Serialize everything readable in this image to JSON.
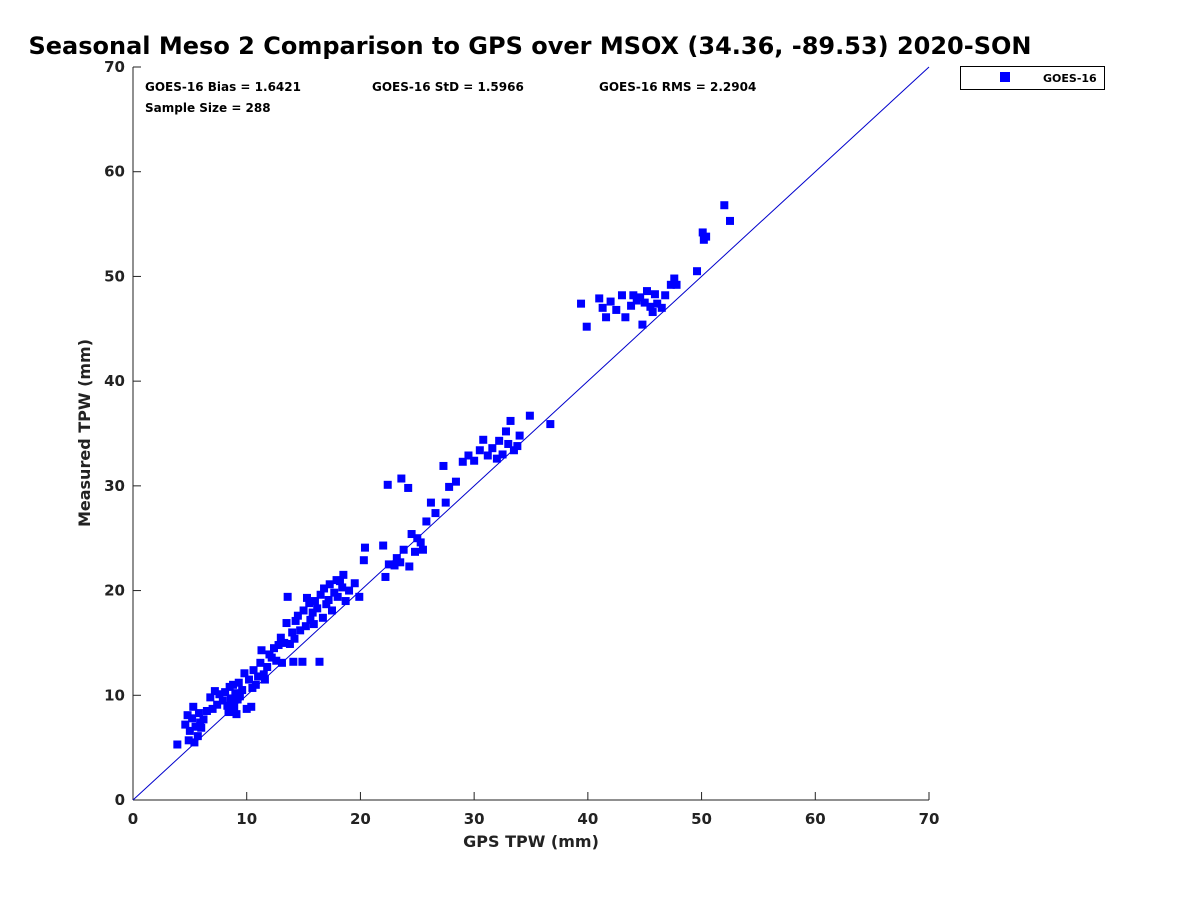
{
  "chart_data": {
    "type": "scatter",
    "title": "Seasonal Meso 2 Comparison to GPS over MSOX (34.36, -89.53) 2020-SON",
    "xlabel": "GPS TPW (mm)",
    "ylabel": "Measured TPW (mm)",
    "xlim": [
      0,
      70
    ],
    "ylim": [
      0,
      70
    ],
    "x_ticks": [
      0,
      10,
      20,
      30,
      40,
      50,
      60,
      70
    ],
    "y_ticks": [
      0,
      10,
      20,
      30,
      40,
      50,
      60,
      70
    ],
    "grid": false,
    "legend_position": "top-right outside",
    "reference_line": {
      "type": "one-to-one",
      "color": "#0000cc"
    },
    "stats": {
      "bias": "GOES-16 Bias = 1.6421",
      "std": "GOES-16 StD = 1.5966",
      "rms": "GOES-16 RMS = 2.2904",
      "sample": "Sample Size = 288"
    },
    "series": [
      {
        "name": "GOES-16",
        "color": "#0000ff",
        "marker": "square",
        "points": [
          [
            3.9,
            5.3
          ],
          [
            4.6,
            7.2
          ],
          [
            4.8,
            8.1
          ],
          [
            4.9,
            5.7
          ],
          [
            5.0,
            6.6
          ],
          [
            5.2,
            7.8
          ],
          [
            5.3,
            8.9
          ],
          [
            5.4,
            5.5
          ],
          [
            5.5,
            7.0
          ],
          [
            5.7,
            6.1
          ],
          [
            5.8,
            8.3
          ],
          [
            5.9,
            7.4
          ],
          [
            6.0,
            6.9
          ],
          [
            6.2,
            7.7
          ],
          [
            6.5,
            8.5
          ],
          [
            6.8,
            9.8
          ],
          [
            7.0,
            8.7
          ],
          [
            7.2,
            10.4
          ],
          [
            7.4,
            9.1
          ],
          [
            7.6,
            10.1
          ],
          [
            7.9,
            9.5
          ],
          [
            8.1,
            10.3
          ],
          [
            8.3,
            9.0
          ],
          [
            8.4,
            8.4
          ],
          [
            8.5,
            10.8
          ],
          [
            8.6,
            9.7
          ],
          [
            8.7,
            9.3
          ],
          [
            8.8,
            11.0
          ],
          [
            8.9,
            8.9
          ],
          [
            9.0,
            10.2
          ],
          [
            9.1,
            8.2
          ],
          [
            9.2,
            9.6
          ],
          [
            9.3,
            11.2
          ],
          [
            9.4,
            9.9
          ],
          [
            9.6,
            10.5
          ],
          [
            9.8,
            12.1
          ],
          [
            10.0,
            8.7
          ],
          [
            10.2,
            11.5
          ],
          [
            10.4,
            8.9
          ],
          [
            10.5,
            10.7
          ],
          [
            10.6,
            12.4
          ],
          [
            10.8,
            11.0
          ],
          [
            11.0,
            11.8
          ],
          [
            11.2,
            13.1
          ],
          [
            11.3,
            14.3
          ],
          [
            11.5,
            12.0
          ],
          [
            11.6,
            11.5
          ],
          [
            11.8,
            12.7
          ],
          [
            12.0,
            13.9
          ],
          [
            12.2,
            13.6
          ],
          [
            12.4,
            14.5
          ],
          [
            12.6,
            13.3
          ],
          [
            12.8,
            14.8
          ],
          [
            13.0,
            15.5
          ],
          [
            13.1,
            13.1
          ],
          [
            13.3,
            15.0
          ],
          [
            13.5,
            16.9
          ],
          [
            13.6,
            19.4
          ],
          [
            13.8,
            14.9
          ],
          [
            14.0,
            16.0
          ],
          [
            14.1,
            13.2
          ],
          [
            14.2,
            15.4
          ],
          [
            14.3,
            17.1
          ],
          [
            14.5,
            17.6
          ],
          [
            14.7,
            16.2
          ],
          [
            14.9,
            13.2
          ],
          [
            15.0,
            18.1
          ],
          [
            15.2,
            16.6
          ],
          [
            15.3,
            19.3
          ],
          [
            15.5,
            18.8
          ],
          [
            15.6,
            17.2
          ],
          [
            15.8,
            17.9
          ],
          [
            15.9,
            16.8
          ],
          [
            16.0,
            19.0
          ],
          [
            16.2,
            18.3
          ],
          [
            16.4,
            13.2
          ],
          [
            16.5,
            19.6
          ],
          [
            16.7,
            17.4
          ],
          [
            16.8,
            20.2
          ],
          [
            17.0,
            18.7
          ],
          [
            17.2,
            19.1
          ],
          [
            17.3,
            20.6
          ],
          [
            17.5,
            18.1
          ],
          [
            17.7,
            19.8
          ],
          [
            17.9,
            21.0
          ],
          [
            18.0,
            19.4
          ],
          [
            18.2,
            20.9
          ],
          [
            18.4,
            20.3
          ],
          [
            18.5,
            21.5
          ],
          [
            18.7,
            19.0
          ],
          [
            19.0,
            20.0
          ],
          [
            19.5,
            20.7
          ],
          [
            19.9,
            19.4
          ],
          [
            20.3,
            22.9
          ],
          [
            20.4,
            24.1
          ],
          [
            22.0,
            24.3
          ],
          [
            22.2,
            21.3
          ],
          [
            22.5,
            22.5
          ],
          [
            22.4,
            30.1
          ],
          [
            23.0,
            22.4
          ],
          [
            23.2,
            23.1
          ],
          [
            23.5,
            22.7
          ],
          [
            23.6,
            30.7
          ],
          [
            23.8,
            23.9
          ],
          [
            24.2,
            29.8
          ],
          [
            24.3,
            22.3
          ],
          [
            24.5,
            25.4
          ],
          [
            24.8,
            23.7
          ],
          [
            25.0,
            25.0
          ],
          [
            25.3,
            24.6
          ],
          [
            25.5,
            23.9
          ],
          [
            25.8,
            26.6
          ],
          [
            26.2,
            28.4
          ],
          [
            26.6,
            27.4
          ],
          [
            27.3,
            31.9
          ],
          [
            27.5,
            28.4
          ],
          [
            27.8,
            29.9
          ],
          [
            28.4,
            30.4
          ],
          [
            29.0,
            32.3
          ],
          [
            29.5,
            32.9
          ],
          [
            30.0,
            32.4
          ],
          [
            30.5,
            33.4
          ],
          [
            30.8,
            34.4
          ],
          [
            31.2,
            32.9
          ],
          [
            31.6,
            33.6
          ],
          [
            32.0,
            32.6
          ],
          [
            32.2,
            34.3
          ],
          [
            32.5,
            33.0
          ],
          [
            32.8,
            35.2
          ],
          [
            33.0,
            34.0
          ],
          [
            33.2,
            36.2
          ],
          [
            33.5,
            33.4
          ],
          [
            33.8,
            33.8
          ],
          [
            34.0,
            34.8
          ],
          [
            34.9,
            36.7
          ],
          [
            36.7,
            35.9
          ],
          [
            39.4,
            47.4
          ],
          [
            39.9,
            45.2
          ],
          [
            41.0,
            47.9
          ],
          [
            41.3,
            47.0
          ],
          [
            41.6,
            46.1
          ],
          [
            42.0,
            47.6
          ],
          [
            42.5,
            46.8
          ],
          [
            43.0,
            48.2
          ],
          [
            43.3,
            46.1
          ],
          [
            43.8,
            47.2
          ],
          [
            44.0,
            48.2
          ],
          [
            44.3,
            47.7
          ],
          [
            44.6,
            48.0
          ],
          [
            44.8,
            45.4
          ],
          [
            45.0,
            47.5
          ],
          [
            45.2,
            48.6
          ],
          [
            45.5,
            47.1
          ],
          [
            45.7,
            46.6
          ],
          [
            45.9,
            48.3
          ],
          [
            46.1,
            47.4
          ],
          [
            46.5,
            47.0
          ],
          [
            46.8,
            48.2
          ],
          [
            47.3,
            49.2
          ],
          [
            47.6,
            49.8
          ],
          [
            47.8,
            49.2
          ],
          [
            49.6,
            50.5
          ],
          [
            50.1,
            54.2
          ],
          [
            50.2,
            53.5
          ],
          [
            50.4,
            53.8
          ],
          [
            52.0,
            56.8
          ],
          [
            52.5,
            55.3
          ]
        ]
      }
    ]
  }
}
